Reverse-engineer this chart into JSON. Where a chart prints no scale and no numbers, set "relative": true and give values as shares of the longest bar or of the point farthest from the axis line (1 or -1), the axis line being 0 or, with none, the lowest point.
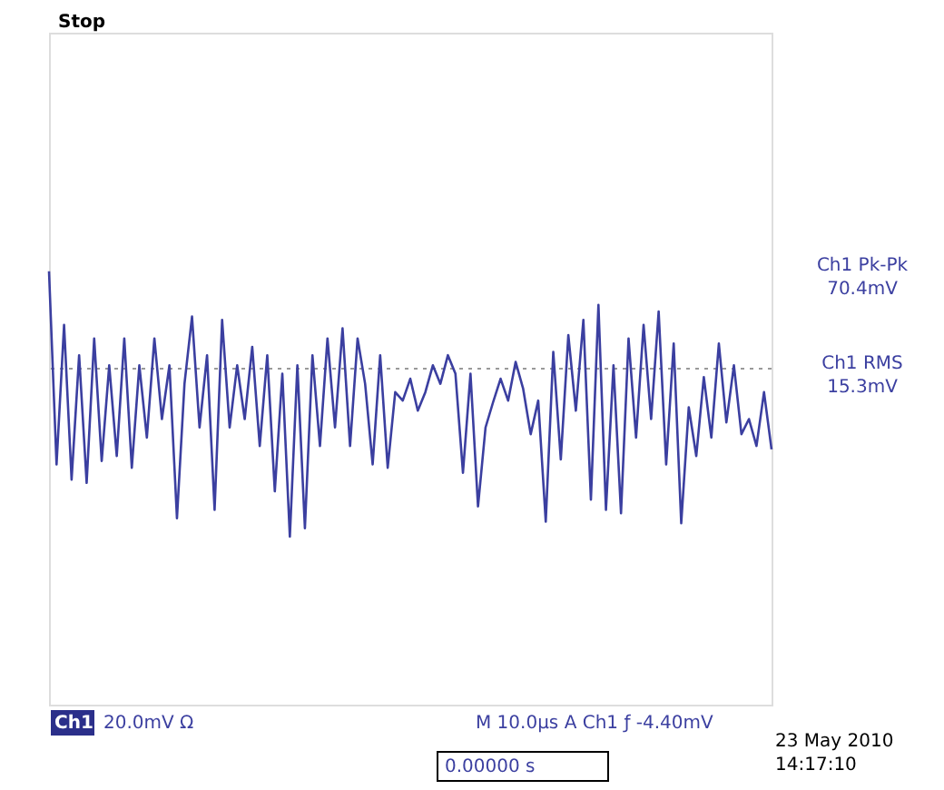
{
  "chart_data": {
    "type": "line",
    "relative": true,
    "tick_labels": false,
    "marker": "none",
    "line_style": "solid",
    "categories": [
      null,
      null,
      null,
      null,
      null,
      null,
      null,
      null,
      null,
      null,
      null,
      null,
      null,
      null,
      null,
      null,
      null,
      null,
      null,
      null,
      null,
      null,
      null,
      null,
      null,
      null,
      null,
      null,
      null,
      null,
      null,
      null,
      null,
      null,
      null,
      null,
      null,
      null,
      null,
      null,
      null,
      null,
      null,
      null,
      null,
      null,
      null,
      null,
      null,
      null,
      null,
      null,
      null,
      null,
      null,
      null,
      null,
      null,
      null,
      null,
      null,
      null,
      null,
      null,
      null,
      null,
      null,
      null,
      null,
      null,
      null,
      null,
      null,
      null,
      null,
      null,
      null,
      null,
      null,
      null,
      null,
      null,
      null,
      null,
      null,
      null,
      null,
      null,
      null,
      null,
      null,
      null,
      null,
      null,
      null,
      null,
      null
    ],
    "series": [
      {
        "color": "#3b3fa0",
        "values": [
          0.58,
          -0.57,
          0.26,
          -0.66,
          0.08,
          -0.68,
          0.18,
          -0.55,
          0.02,
          -0.52,
          0.18,
          -0.59,
          0.02,
          -0.41,
          0.18,
          -0.3,
          0.02,
          -0.89,
          -0.09,
          0.31,
          -0.35,
          0.08,
          -0.84,
          0.29,
          -0.35,
          0.02,
          -0.3,
          0.13,
          -0.46,
          0.08,
          -0.73,
          -0.03,
          -1.0,
          0.02,
          -0.95,
          0.08,
          -0.46,
          0.18,
          -0.35,
          0.24,
          -0.46,
          0.18,
          -0.09,
          -0.57,
          0.08,
          -0.59,
          -0.14,
          -0.19,
          -0.06,
          -0.25,
          -0.14,
          0.02,
          -0.09,
          0.08,
          -0.03,
          -0.62,
          -0.03,
          -0.82,
          -0.35,
          -0.2,
          -0.06,
          -0.19,
          0.04,
          -0.12,
          -0.39,
          -0.19,
          -0.91,
          0.1,
          -0.54,
          0.2,
          -0.25,
          0.29,
          -0.78,
          0.38,
          -0.84,
          0.02,
          -0.86,
          0.18,
          -0.41,
          0.26,
          -0.3,
          0.34,
          -0.57,
          0.15,
          -0.92,
          -0.23,
          -0.52,
          -0.05,
          -0.41,
          0.15,
          -0.32,
          0.02,
          -0.39,
          -0.3,
          -0.46,
          -0.14,
          -0.48
        ]
      }
    ],
    "ref_lines": [
      {
        "axis": "y",
        "value": 0,
        "color": "#999999",
        "line_style": "dotted"
      }
    ],
    "annotations": [
      "Stop",
      "Ch1 Pk-Pk",
      "70.4mV",
      "Ch1 RMS",
      "15.3mV",
      "Ch1",
      "20.0mV Ω",
      "M 10.0µs  A  Ch1  ƒ -4.40mV",
      "0.00000 s",
      "23 May 2010",
      "14:17:10"
    ]
  }
}
